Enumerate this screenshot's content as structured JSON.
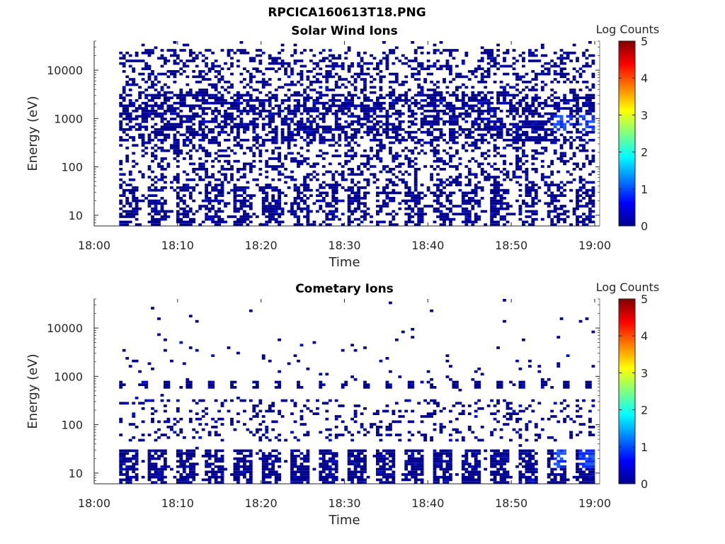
{
  "figure_title": "RPCICA160613T18.PNG",
  "chart_data": [
    {
      "type": "heatmap",
      "title": "Solar Wind Ions",
      "xlabel": "Time",
      "ylabel": "Energy (eV)",
      "x_ticks": [
        "18:00",
        "18:10",
        "18:20",
        "18:30",
        "18:40",
        "18:50",
        "19:00"
      ],
      "y_ticks": [
        "10",
        "100",
        "1000",
        "10000"
      ],
      "y_scale": "log",
      "ylim": [
        6,
        40000
      ],
      "xlim": [
        "18:00",
        "19:00"
      ],
      "data_start": "18:03",
      "data_end": "19:00",
      "colorbar": {
        "label": "Log Counts",
        "ticks": [
          "0",
          "1",
          "2",
          "3",
          "4",
          "5"
        ],
        "range": [
          0,
          5
        ],
        "colormap": "jet"
      },
      "description": "Sparse counts (mostly Log Counts ~0) spanning ~10 eV to ~20000 eV, densest between ~300 and ~3000 eV, with brighter (~1) patches near 700 eV around 18:56 and 18:59"
    },
    {
      "type": "heatmap",
      "title": "Cometary Ions",
      "xlabel": "Time",
      "ylabel": "Energy (eV)",
      "x_ticks": [
        "18:00",
        "18:10",
        "18:20",
        "18:30",
        "18:40",
        "18:50",
        "19:00"
      ],
      "y_ticks": [
        "10",
        "100",
        "1000",
        "10000"
      ],
      "y_scale": "log",
      "ylim": [
        6,
        40000
      ],
      "xlim": [
        "18:00",
        "19:00"
      ],
      "data_start": "18:03",
      "data_end": "19:00",
      "colorbar": {
        "label": "Log Counts",
        "ticks": [
          "0",
          "1",
          "2",
          "3",
          "4",
          "5"
        ],
        "range": [
          0,
          5
        ],
        "colormap": "jet"
      },
      "description": "Counts concentrated below ~30 eV in periodic vertical bands, a recurring line near 600 eV, scattered points 50-300 eV, and brighter (~1) patches near 15-25 eV around 18:56 and 18:59"
    }
  ]
}
